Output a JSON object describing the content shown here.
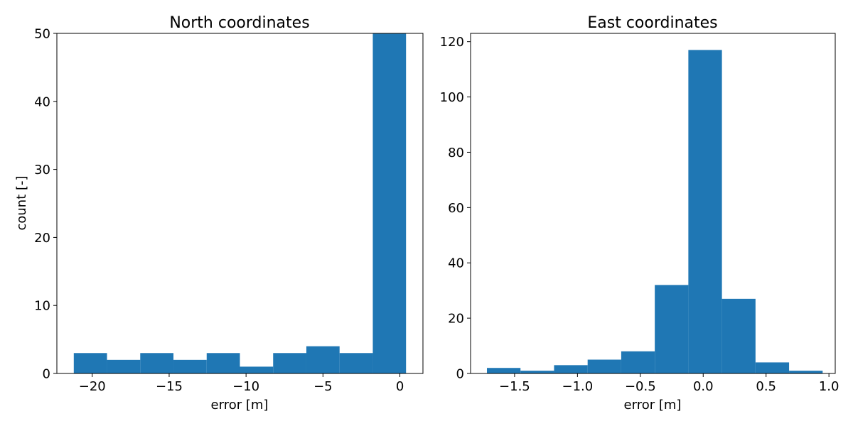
{
  "figure": {
    "background": "#ffffff"
  },
  "chart_data": [
    {
      "type": "bar",
      "title": "North coordinates",
      "xlabel": "error [m]",
      "ylabel": "count [-]",
      "xlim": [
        -22.3,
        1.5
      ],
      "ylim": [
        0,
        50
      ],
      "xticks": [
        -20,
        -15,
        -10,
        -5,
        0
      ],
      "xtick_labels": [
        "−20",
        "−15",
        "−10",
        "−5",
        "0"
      ],
      "yticks": [
        0,
        10,
        20,
        30,
        40,
        50
      ],
      "ytick_labels": [
        "0",
        "10",
        "20",
        "30",
        "40",
        "50"
      ],
      "bin_edges": [
        -21.2,
        -19.04,
        -16.88,
        -14.72,
        -12.56,
        -10.4,
        -8.24,
        -6.08,
        -3.92,
        -1.76,
        0.4
      ],
      "values": [
        3,
        2,
        3,
        2,
        3,
        1,
        3,
        4,
        3,
        50
      ],
      "color": "#1f77b4",
      "grid": false
    },
    {
      "type": "bar",
      "title": "East coordinates",
      "xlabel": "error [m]",
      "ylabel": "",
      "xlim": [
        -1.85,
        1.05
      ],
      "ylim": [
        0,
        123
      ],
      "xticks": [
        -1.5,
        -1.0,
        -0.5,
        0.0,
        0.5,
        1.0
      ],
      "xtick_labels": [
        "−1.5",
        "−1.0",
        "−0.5",
        "0.0",
        "0.5",
        "1.0"
      ],
      "yticks": [
        0,
        20,
        40,
        60,
        80,
        100,
        120
      ],
      "ytick_labels": [
        "0",
        "20",
        "40",
        "60",
        "80",
        "100",
        "120"
      ],
      "bin_edges": [
        -1.72,
        -1.453,
        -1.186,
        -0.919,
        -0.652,
        -0.385,
        -0.118,
        0.149,
        0.416,
        0.683,
        0.95
      ],
      "values": [
        2,
        1,
        3,
        5,
        8,
        32,
        117,
        27,
        4,
        1
      ],
      "color": "#1f77b4",
      "grid": false
    }
  ]
}
